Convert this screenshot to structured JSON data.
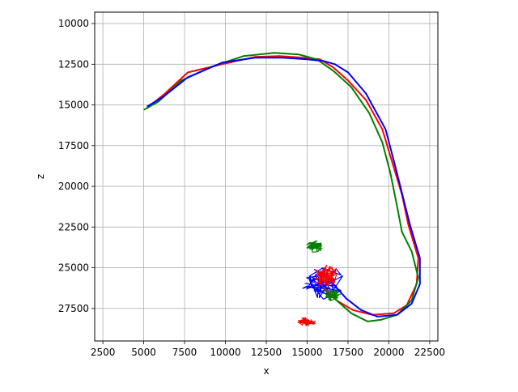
{
  "chart_data": {
    "type": "line",
    "xlabel": "x",
    "ylabel": "z",
    "xlim": [
      2000,
      23000
    ],
    "ylim": [
      29500,
      9300
    ],
    "y_inverted": true,
    "grid": true,
    "xticks": [
      2500,
      5000,
      7500,
      10000,
      12500,
      15000,
      17500,
      20000,
      22500
    ],
    "xtick_labels": [
      "2500",
      "5000",
      "7500",
      "10000",
      "12500",
      "15000",
      "17500",
      "20000",
      "22500"
    ],
    "yticks": [
      10000,
      12500,
      15000,
      17500,
      20000,
      22500,
      25000,
      27500
    ],
    "ytick_labels": [
      "10000",
      "12500",
      "15000",
      "17500",
      "20000",
      "22500",
      "25000",
      "27500"
    ],
    "series": [
      {
        "color": "#ff0000",
        "values": [
          [
            5200,
            15200
          ],
          [
            6300,
            14300
          ],
          [
            7700,
            13000
          ],
          [
            9800,
            12500
          ],
          [
            11800,
            12050
          ],
          [
            13300,
            12000
          ],
          [
            14800,
            12100
          ],
          [
            15800,
            12200
          ],
          [
            16600,
            12700
          ],
          [
            17500,
            13500
          ],
          [
            18600,
            14700
          ],
          [
            19600,
            16500
          ],
          [
            20200,
            18500
          ],
          [
            20800,
            20500
          ],
          [
            21200,
            22400
          ],
          [
            21800,
            24400
          ],
          [
            21700,
            26000
          ],
          [
            21100,
            27300
          ],
          [
            20300,
            27800
          ],
          [
            19000,
            27900
          ],
          [
            17800,
            27600
          ],
          [
            16800,
            27000
          ],
          [
            16000,
            26200
          ]
        ]
      },
      {
        "color": "#008000",
        "values": [
          [
            5000,
            15300
          ],
          [
            5900,
            14800
          ],
          [
            7300,
            13500
          ],
          [
            9300,
            12600
          ],
          [
            11100,
            12000
          ],
          [
            13000,
            11800
          ],
          [
            14500,
            11900
          ],
          [
            15600,
            12200
          ],
          [
            16600,
            12900
          ],
          [
            17700,
            13900
          ],
          [
            18800,
            15500
          ],
          [
            19600,
            17300
          ],
          [
            20100,
            19200
          ],
          [
            20500,
            21200
          ],
          [
            20800,
            22800
          ],
          [
            21400,
            24000
          ],
          [
            21800,
            25600
          ],
          [
            21400,
            27000
          ],
          [
            20500,
            27900
          ],
          [
            19500,
            28200
          ],
          [
            18700,
            28300
          ],
          [
            17700,
            27800
          ],
          [
            16800,
            27000
          ],
          [
            16000,
            26300
          ]
        ]
      },
      {
        "color": "#0000ff",
        "values": [
          [
            5200,
            15100
          ],
          [
            6200,
            14500
          ],
          [
            7700,
            13300
          ],
          [
            9800,
            12400
          ],
          [
            11800,
            12100
          ],
          [
            13500,
            12100
          ],
          [
            15000,
            12200
          ],
          [
            16000,
            12300
          ],
          [
            16700,
            12500
          ],
          [
            17500,
            13000
          ],
          [
            18600,
            14300
          ],
          [
            19800,
            16500
          ],
          [
            20400,
            18800
          ],
          [
            20900,
            20800
          ],
          [
            21300,
            22400
          ],
          [
            21900,
            24400
          ],
          [
            21900,
            26000
          ],
          [
            21400,
            27200
          ],
          [
            20500,
            27900
          ],
          [
            19300,
            28000
          ],
          [
            18300,
            27600
          ],
          [
            17400,
            26900
          ],
          [
            16600,
            26000
          ]
        ]
      }
    ],
    "blobs": [
      {
        "color": "#0000ff",
        "cx": 15900,
        "cy": 25900,
        "rx": 1400,
        "ry": 1100
      },
      {
        "color": "#ff0000",
        "cx": 15000,
        "cy": 28300,
        "rx": 600,
        "ry": 260
      },
      {
        "color": "#008000",
        "cx": 15500,
        "cy": 23700,
        "rx": 550,
        "ry": 380
      },
      {
        "color": "#ff0000",
        "cx": 16200,
        "cy": 25500,
        "rx": 800,
        "ry": 700
      },
      {
        "color": "#008000",
        "cx": 16600,
        "cy": 26700,
        "rx": 500,
        "ry": 380
      }
    ]
  }
}
